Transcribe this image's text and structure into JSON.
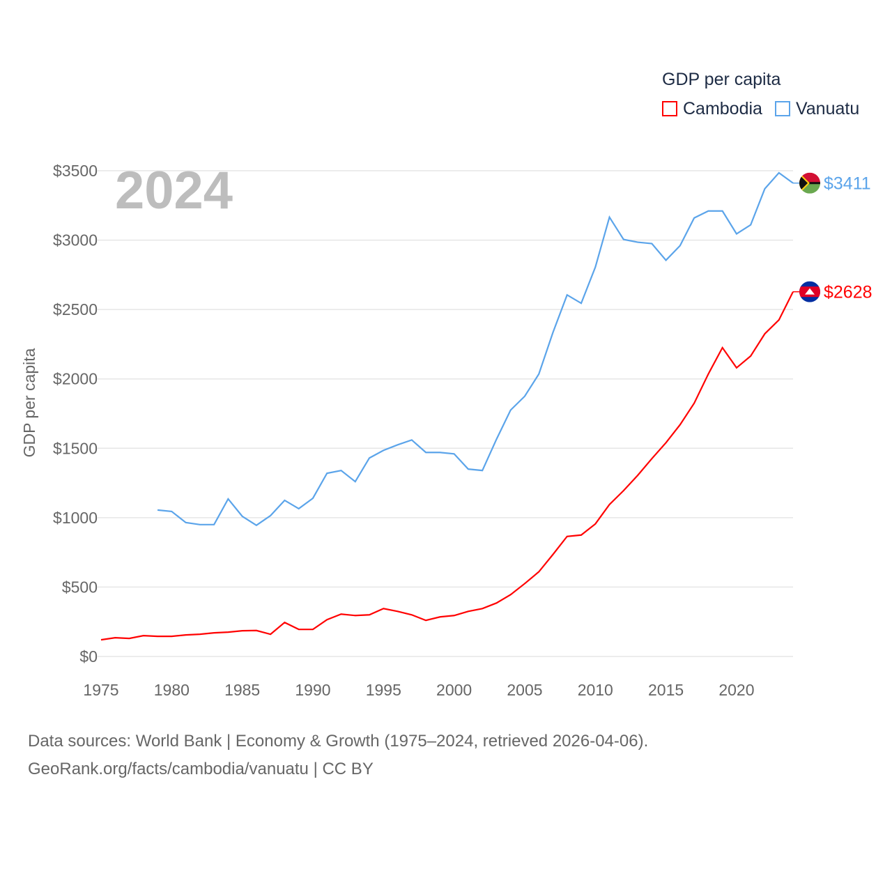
{
  "chart_data": {
    "type": "line",
    "title": "",
    "year_label": "2024",
    "ylabel": "GDP per capita",
    "xlabel": "",
    "ylim": [
      0,
      3500
    ],
    "xlim": [
      1975,
      2024
    ],
    "yticks": [
      0,
      500,
      1000,
      1500,
      2000,
      2500,
      3000,
      3500
    ],
    "ytick_labels": [
      "$0",
      "$500",
      "$1000",
      "$1500",
      "$2000",
      "$2500",
      "$3000",
      "$3500"
    ],
    "xticks": [
      1975,
      1980,
      1985,
      1990,
      1995,
      2000,
      2005,
      2010,
      2015,
      2020
    ],
    "xtick_labels": [
      "1975",
      "1980",
      "1985",
      "1990",
      "1995",
      "2000",
      "2005",
      "2010",
      "2015",
      "2020"
    ],
    "grid": true,
    "legend": {
      "title": "GDP per capita",
      "placement": "top-right"
    },
    "series": [
      {
        "name": "Cambodia",
        "color": "#ff0000",
        "end_label": "$2628",
        "start_year": 1975,
        "values": [
          120,
          135,
          130,
          150,
          145,
          145,
          155,
          160,
          170,
          175,
          185,
          187,
          160,
          245,
          195,
          195,
          265,
          305,
          295,
          300,
          345,
          325,
          300,
          260,
          285,
          295,
          325,
          345,
          385,
          445,
          525,
          610,
          735,
          865,
          875,
          955,
          1095,
          1195,
          1305,
          1425,
          1540,
          1670,
          1825,
          2035,
          2225,
          2080,
          2165,
          2325,
          2425,
          2628
        ]
      },
      {
        "name": "Vanuatu",
        "color": "#5ba4ea",
        "end_label": "$3411",
        "start_year": 1979,
        "values": [
          1055,
          1045,
          965,
          950,
          950,
          1135,
          1010,
          945,
          1015,
          1125,
          1065,
          1140,
          1320,
          1340,
          1260,
          1430,
          1485,
          1525,
          1560,
          1470,
          1470,
          1460,
          1350,
          1340,
          1565,
          1775,
          1875,
          2035,
          2335,
          2605,
          2545,
          2805,
          3165,
          3005,
          2985,
          2975,
          2855,
          2960,
          3160,
          3210,
          3210,
          3045,
          3110,
          3370,
          3485,
          3411
        ]
      }
    ]
  },
  "footer": {
    "line1": "Data sources: World Bank | Economy & Growth (1975–2024, retrieved 2026-04-06).",
    "line2": "GeoRank.org/facts/cambodia/vanuatu | CC BY"
  }
}
